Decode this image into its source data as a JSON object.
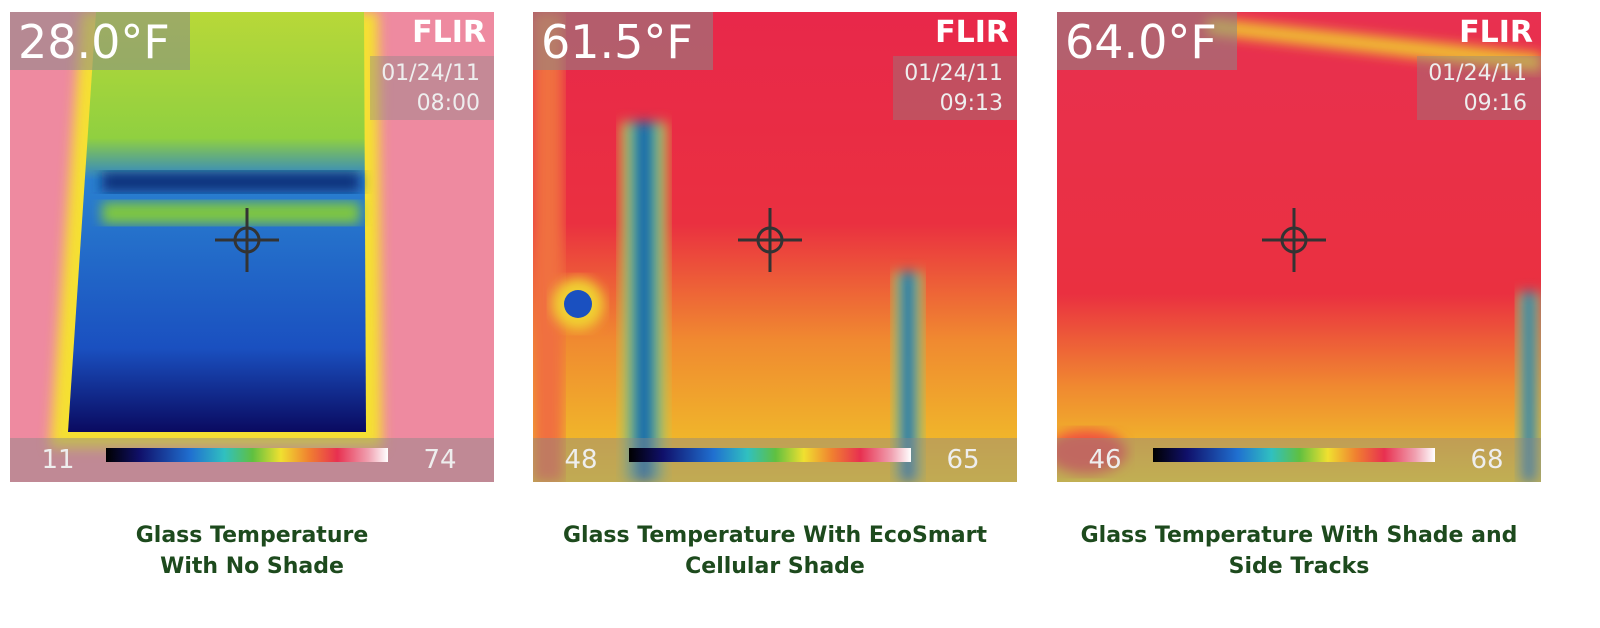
{
  "panels": [
    {
      "temperature": "28.0°F",
      "brand": "FLIR",
      "date": "01/24/11",
      "time": "08:00",
      "scale_min": "11",
      "scale_max": "74",
      "caption": [
        "Glass Temperature",
        "With No Shade"
      ]
    },
    {
      "temperature": "61.5°F",
      "brand": "FLIR",
      "date": "01/24/11",
      "time": "09:13",
      "scale_min": "48",
      "scale_max": "65",
      "caption": [
        "Glass Temperature With EcoSmart",
        "Cellular Shade"
      ]
    },
    {
      "temperature": "64.0°F",
      "brand": "FLIR",
      "date": "01/24/11",
      "time": "09:16",
      "scale_min": "46",
      "scale_max": "68",
      "caption": [
        "Glass Temperature With Shade and",
        "Side Tracks"
      ]
    }
  ]
}
